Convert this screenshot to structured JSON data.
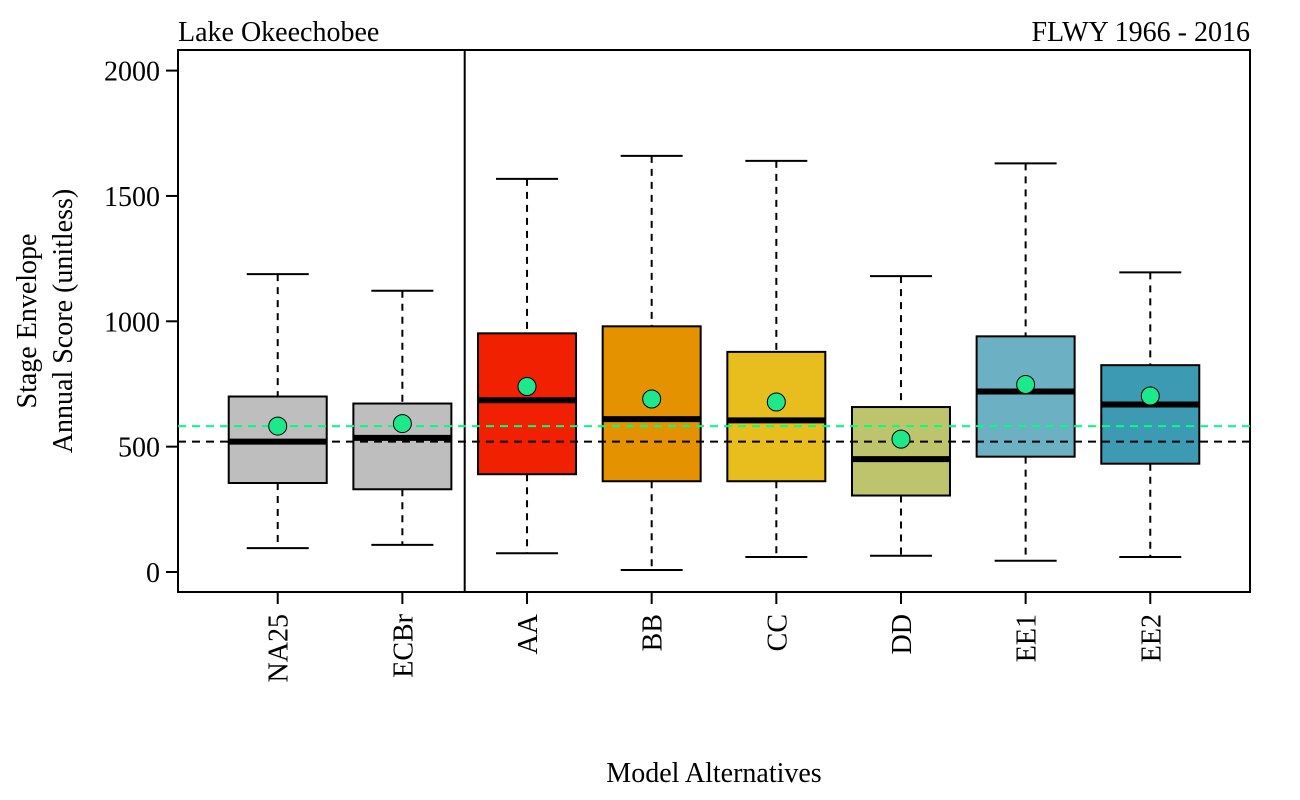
{
  "chart_data": {
    "type": "boxplot",
    "title_left": "Lake Okeechobee",
    "title_right": "FLWY 1966 - 2016",
    "xlabel": "Model Alternatives",
    "ylabel_line1": "Stage Envelope",
    "ylabel_line2": "Annual Score (unitless)",
    "ylim": [
      -75,
      2100
    ],
    "yticks": [
      0,
      500,
      1000,
      1500,
      2000
    ],
    "ytick_labels": [
      "0",
      "500",
      "1000",
      "1500",
      "2000"
    ],
    "grid": false,
    "group_divider_after_index": 1,
    "reference_lines": [
      {
        "value": 520,
        "color": "#000000"
      },
      {
        "value": 582,
        "color": "#00ff7f"
      }
    ],
    "mean_marker_color": "#1de98b",
    "categories": [
      "NA25",
      "ECBr",
      "AA",
      "BB",
      "CC",
      "DD",
      "EE1",
      "EE2"
    ],
    "boxes": [
      {
        "name": "NA25",
        "min": 95,
        "q1": 355,
        "median": 520,
        "q3": 700,
        "max": 1188,
        "mean": 582,
        "color": "#bebebe"
      },
      {
        "name": "ECBr",
        "min": 108,
        "q1": 330,
        "median": 535,
        "q3": 672,
        "max": 1122,
        "mean": 592,
        "color": "#bebebe"
      },
      {
        "name": "AA",
        "min": 75,
        "q1": 390,
        "median": 685,
        "q3": 952,
        "max": 1568,
        "mean": 740,
        "color": "#f02000"
      },
      {
        "name": "BB",
        "min": 8,
        "q1": 362,
        "median": 610,
        "q3": 980,
        "max": 1660,
        "mean": 690,
        "color": "#e59200"
      },
      {
        "name": "CC",
        "min": 60,
        "q1": 362,
        "median": 605,
        "q3": 878,
        "max": 1640,
        "mean": 678,
        "color": "#e8bd1e"
      },
      {
        "name": "DD",
        "min": 65,
        "q1": 305,
        "median": 450,
        "q3": 658,
        "max": 1180,
        "mean": 530,
        "color": "#bdc46b"
      },
      {
        "name": "EE1",
        "min": 45,
        "q1": 460,
        "median": 720,
        "q3": 940,
        "max": 1630,
        "mean": 748,
        "color": "#6cb1c3"
      },
      {
        "name": "EE2",
        "min": 60,
        "q1": 432,
        "median": 668,
        "q3": 825,
        "max": 1195,
        "mean": 702,
        "color": "#3d9ab3"
      }
    ]
  }
}
